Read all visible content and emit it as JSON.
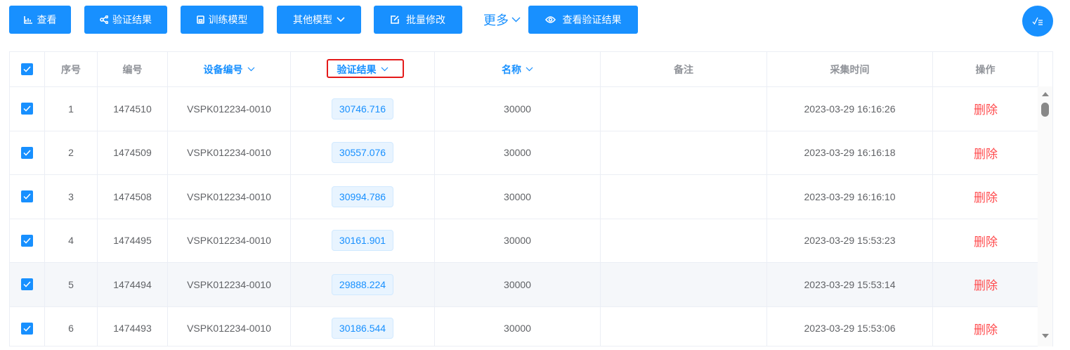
{
  "toolbar": {
    "view": "查看",
    "verify_result": "验证结果",
    "train_model": "训练模型",
    "other_models": "其他模型",
    "batch_edit": "批量修改",
    "more": "更多",
    "view_verify_result": "查看验证结果"
  },
  "colors": {
    "primary": "#1890ff",
    "danger": "#ff4d4f",
    "highlight_box": "#e41a1a"
  },
  "table": {
    "headers": [
      "序号",
      "编号",
      "设备编号",
      "验证结果",
      "名称",
      "备注",
      "采集时间",
      "操作"
    ],
    "rows": [
      {
        "index": "1",
        "id": "1474510",
        "device": "VSPK012234-0010",
        "result": "30746.716",
        "name": "30000",
        "remark": "",
        "time": "2023-03-29 16:16:26",
        "action": "删除",
        "checked": true
      },
      {
        "index": "2",
        "id": "1474509",
        "device": "VSPK012234-0010",
        "result": "30557.076",
        "name": "30000",
        "remark": "",
        "time": "2023-03-29 16:16:18",
        "action": "删除",
        "checked": true
      },
      {
        "index": "3",
        "id": "1474508",
        "device": "VSPK012234-0010",
        "result": "30994.786",
        "name": "30000",
        "remark": "",
        "time": "2023-03-29 16:16:10",
        "action": "删除",
        "checked": true
      },
      {
        "index": "4",
        "id": "1474495",
        "device": "VSPK012234-0010",
        "result": "30161.901",
        "name": "30000",
        "remark": "",
        "time": "2023-03-29 15:53:23",
        "action": "删除",
        "checked": true
      },
      {
        "index": "5",
        "id": "1474494",
        "device": "VSPK012234-0010",
        "result": "29888.224",
        "name": "30000",
        "remark": "",
        "time": "2023-03-29 15:53:14",
        "action": "删除",
        "checked": true
      },
      {
        "index": "6",
        "id": "1474493",
        "device": "VSPK012234-0010",
        "result": "30186.544",
        "name": "30000",
        "remark": "",
        "time": "2023-03-29 15:53:06",
        "action": "删除",
        "checked": true
      }
    ]
  }
}
